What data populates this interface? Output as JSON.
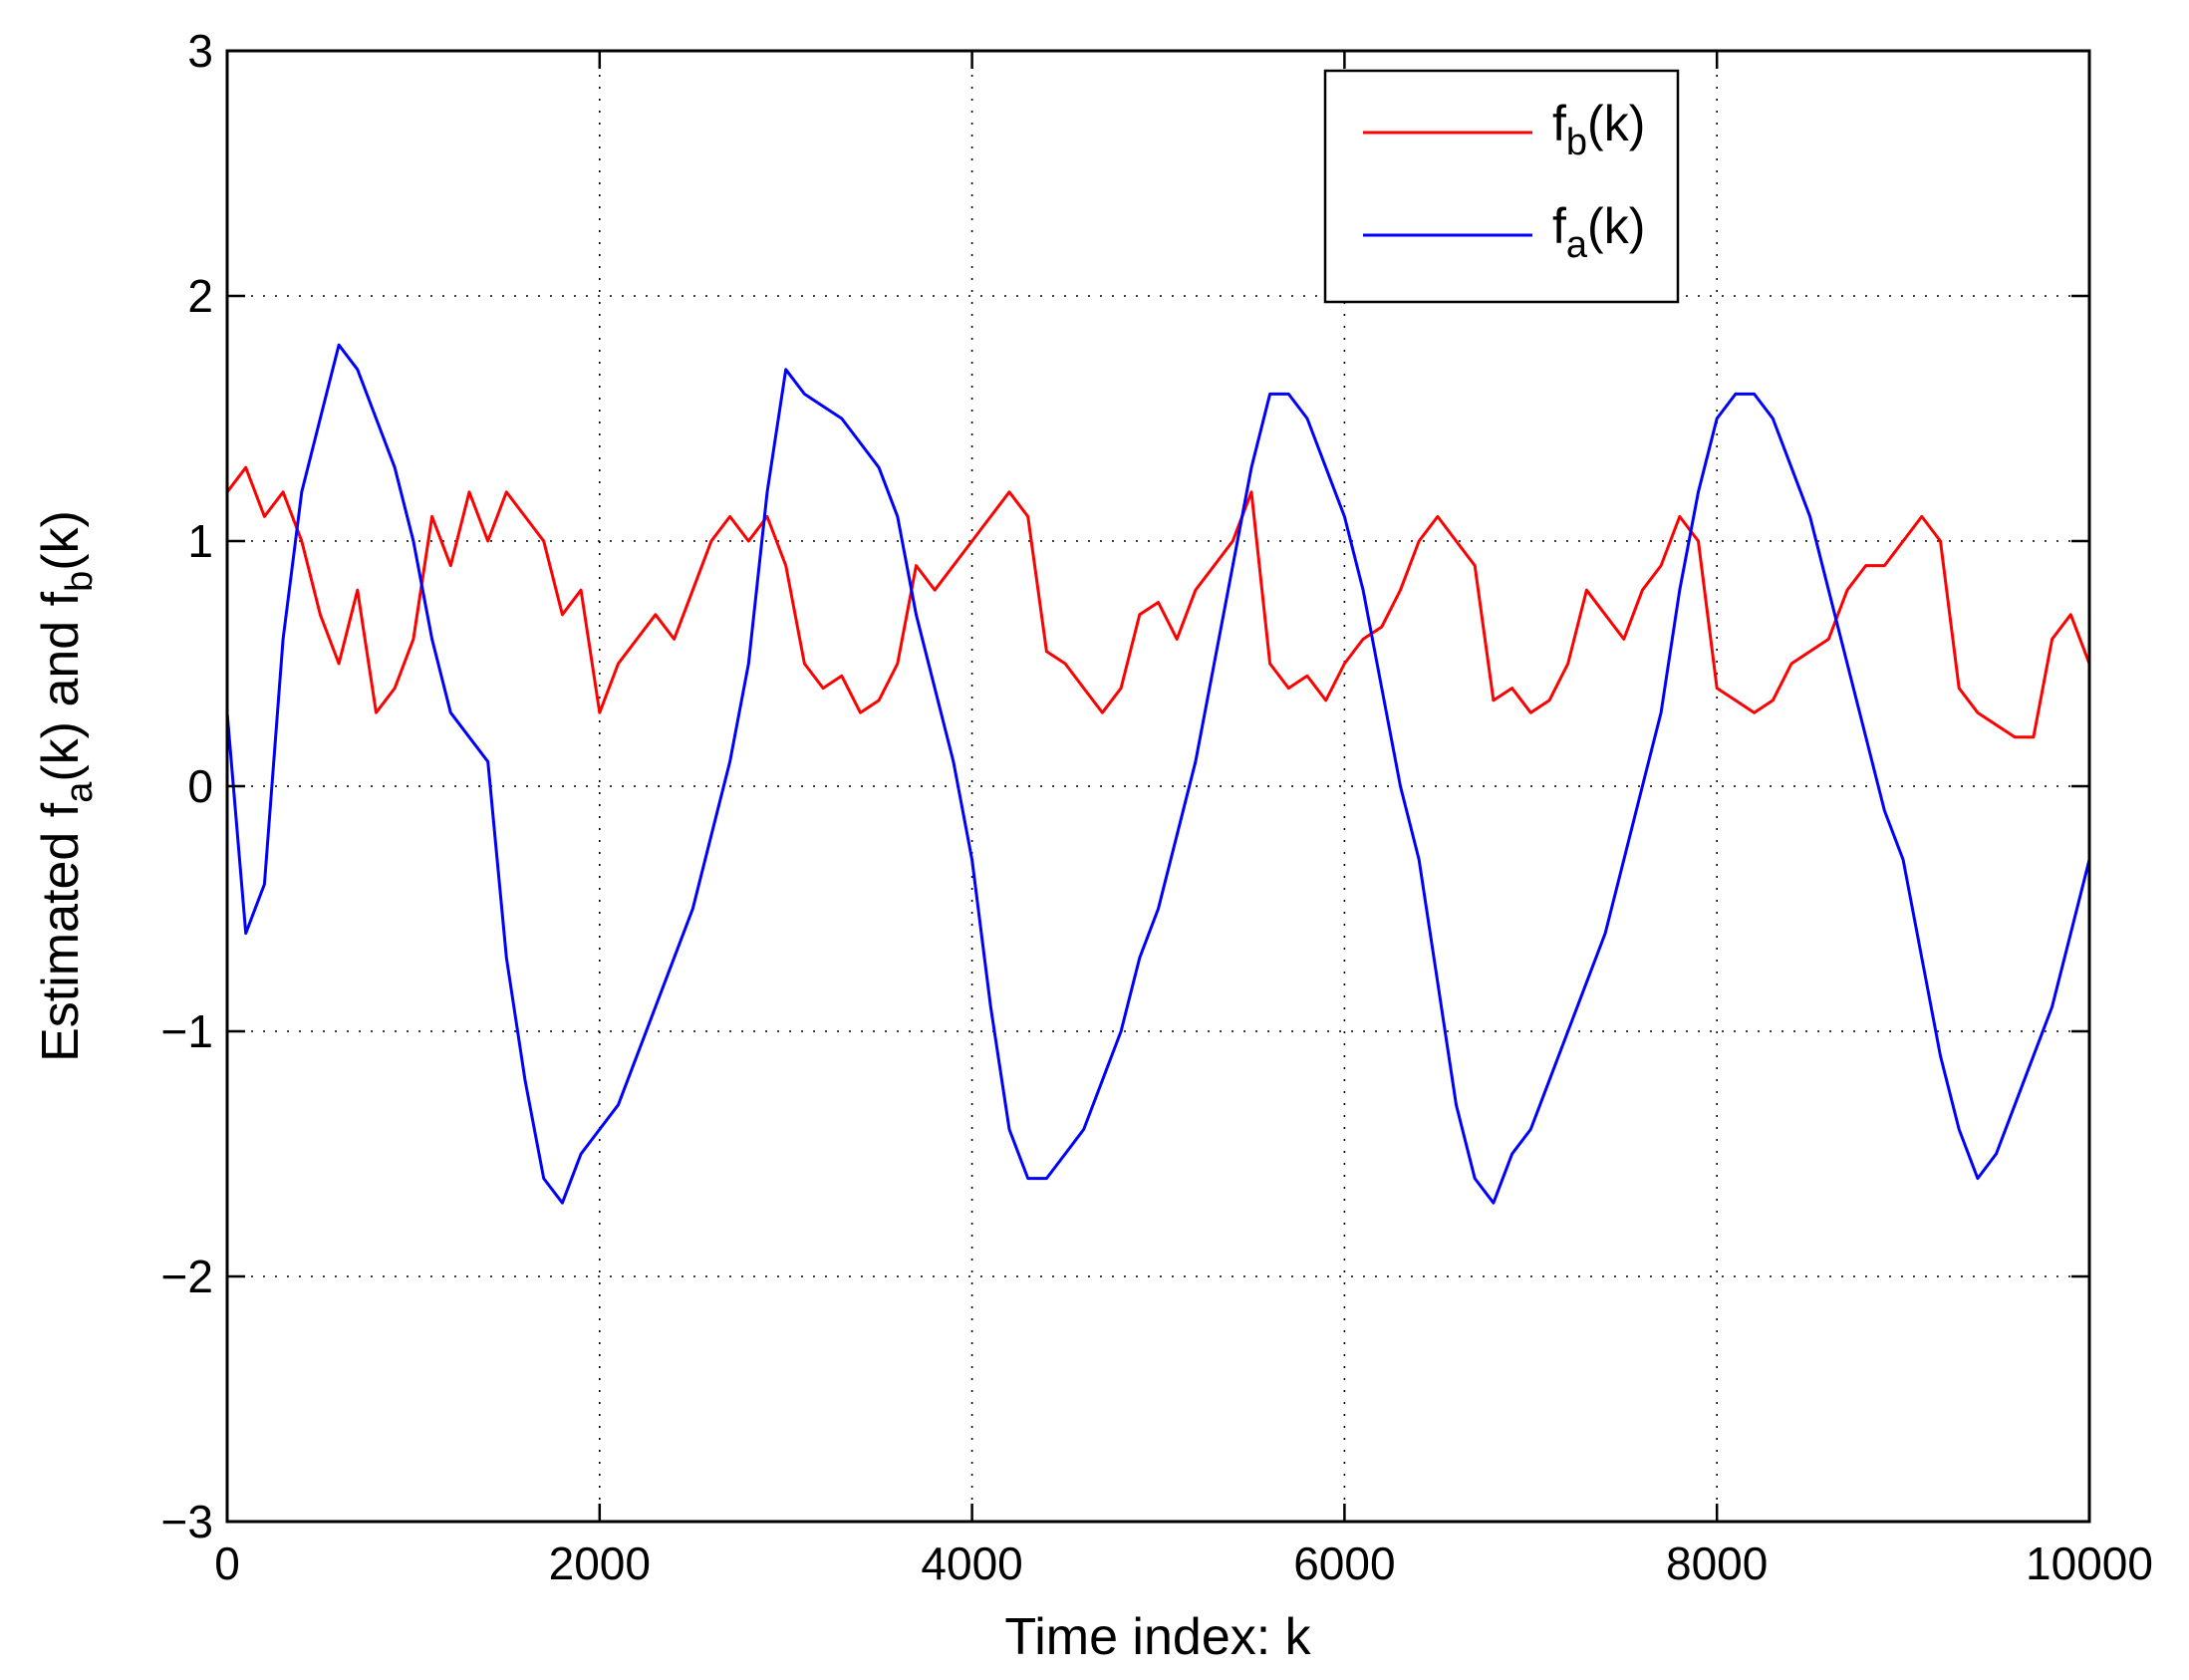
{
  "chart_data": {
    "type": "line",
    "xlabel": "Time index: k",
    "ylabel": {
      "prefix": "Estimated f",
      "sub1": "a",
      "middle": "(k) and f",
      "sub2": "b",
      "suffix": "(k)"
    },
    "xlim": [
      0,
      10000
    ],
    "ylim": [
      -3,
      3
    ],
    "xticks": [
      0,
      2000,
      4000,
      6000,
      8000,
      10000
    ],
    "yticks": [
      -3,
      -2,
      -1,
      0,
      1,
      2,
      3
    ],
    "xtick_labels": [
      "0",
      "2000",
      "4000",
      "6000",
      "8000",
      "10000"
    ],
    "ytick_labels": [
      "−3",
      "−2",
      "−1",
      "0",
      "1",
      "2",
      "3"
    ],
    "grid": true,
    "legend_position": "top-right",
    "series": [
      {
        "name": "f_b(k)",
        "legend_main": "f",
        "legend_sub": "b",
        "legend_suffix": "(k)",
        "color": "#ff0000",
        "x": [
          0,
          100,
          200,
          300,
          400,
          500,
          600,
          700,
          800,
          900,
          1000,
          1100,
          1200,
          1300,
          1400,
          1500,
          1600,
          1700,
          1800,
          1900,
          2000,
          2100,
          2200,
          2300,
          2400,
          2500,
          2600,
          2700,
          2800,
          2900,
          3000,
          3100,
          3200,
          3300,
          3400,
          3500,
          3600,
          3700,
          3800,
          3900,
          4000,
          4100,
          4200,
          4300,
          4400,
          4500,
          4600,
          4700,
          4800,
          4900,
          5000,
          5100,
          5200,
          5300,
          5400,
          5500,
          5600,
          5700,
          5800,
          5900,
          6000,
          6100,
          6200,
          6300,
          6400,
          6500,
          6600,
          6700,
          6800,
          6900,
          7000,
          7100,
          7200,
          7300,
          7400,
          7500,
          7600,
          7700,
          7800,
          7900,
          8000,
          8100,
          8200,
          8300,
          8400,
          8500,
          8600,
          8700,
          8800,
          8900,
          9000,
          9100,
          9200,
          9300,
          9400,
          9500,
          9600,
          9700,
          9800,
          9900,
          10000
        ],
        "values": [
          1.2,
          1.3,
          1.1,
          1.2,
          1.0,
          0.7,
          0.5,
          0.8,
          0.3,
          0.4,
          0.6,
          1.1,
          0.9,
          1.2,
          1.0,
          1.2,
          1.1,
          1.0,
          0.7,
          0.8,
          0.3,
          0.5,
          0.6,
          0.7,
          0.6,
          0.8,
          1.0,
          1.1,
          1.0,
          1.1,
          0.9,
          0.5,
          0.4,
          0.45,
          0.3,
          0.35,
          0.5,
          0.9,
          0.8,
          0.9,
          1.0,
          1.1,
          1.2,
          1.1,
          0.55,
          0.5,
          0.4,
          0.3,
          0.4,
          0.7,
          0.75,
          0.6,
          0.8,
          0.9,
          1.0,
          1.2,
          0.5,
          0.4,
          0.45,
          0.35,
          0.5,
          0.6,
          0.65,
          0.8,
          1.0,
          1.1,
          1.0,
          0.9,
          0.35,
          0.4,
          0.3,
          0.35,
          0.5,
          0.8,
          0.7,
          0.6,
          0.8,
          0.9,
          1.1,
          1.0,
          0.4,
          0.35,
          0.3,
          0.35,
          0.5,
          0.55,
          0.6,
          0.8,
          0.9,
          0.9,
          1.0,
          1.1,
          1.0,
          0.4,
          0.3,
          0.25,
          0.2,
          0.2,
          0.6,
          0.7,
          0.5
        ]
      },
      {
        "name": "f_a(k)",
        "legend_main": "f",
        "legend_sub": "a",
        "legend_suffix": "(k)",
        "color": "#0000ff",
        "x": [
          0,
          100,
          200,
          300,
          400,
          500,
          600,
          700,
          800,
          900,
          1000,
          1100,
          1200,
          1300,
          1400,
          1500,
          1600,
          1700,
          1800,
          1900,
          2000,
          2100,
          2200,
          2300,
          2400,
          2500,
          2600,
          2700,
          2800,
          2900,
          3000,
          3100,
          3200,
          3300,
          3400,
          3500,
          3600,
          3700,
          3800,
          3900,
          4000,
          4100,
          4200,
          4300,
          4400,
          4500,
          4600,
          4700,
          4800,
          4900,
          5000,
          5100,
          5200,
          5300,
          5400,
          5500,
          5600,
          5700,
          5800,
          5900,
          6000,
          6100,
          6200,
          6300,
          6400,
          6500,
          6600,
          6700,
          6800,
          6900,
          7000,
          7100,
          7200,
          7300,
          7400,
          7500,
          7600,
          7700,
          7800,
          7900,
          8000,
          8100,
          8200,
          8300,
          8400,
          8500,
          8600,
          8700,
          8800,
          8900,
          9000,
          9100,
          9200,
          9300,
          9400,
          9500,
          9600,
          9700,
          9800,
          9900,
          10000
        ],
        "values": [
          0.3,
          -0.6,
          -0.4,
          0.6,
          1.2,
          1.5,
          1.8,
          1.7,
          1.5,
          1.3,
          1.0,
          0.6,
          0.3,
          0.2,
          0.1,
          -0.7,
          -1.2,
          -1.6,
          -1.7,
          -1.5,
          -1.4,
          -1.3,
          -1.1,
          -0.9,
          -0.7,
          -0.5,
          -0.2,
          0.1,
          0.5,
          1.2,
          1.7,
          1.6,
          1.55,
          1.5,
          1.4,
          1.3,
          1.1,
          0.7,
          0.4,
          0.1,
          -0.3,
          -0.9,
          -1.4,
          -1.6,
          -1.6,
          -1.5,
          -1.4,
          -1.2,
          -1.0,
          -0.7,
          -0.5,
          -0.2,
          0.1,
          0.5,
          0.9,
          1.3,
          1.6,
          1.6,
          1.5,
          1.3,
          1.1,
          0.8,
          0.4,
          0.0,
          -0.3,
          -0.8,
          -1.3,
          -1.6,
          -1.7,
          -1.5,
          -1.4,
          -1.2,
          -1.0,
          -0.8,
          -0.6,
          -0.3,
          0.0,
          0.3,
          0.8,
          1.2,
          1.5,
          1.6,
          1.6,
          1.5,
          1.3,
          1.1,
          0.8,
          0.5,
          0.2,
          -0.1,
          -0.3,
          -0.7,
          -1.1,
          -1.4,
          -1.6,
          -1.5,
          -1.3,
          -1.1,
          -0.9,
          -0.6,
          -0.3
        ]
      }
    ]
  }
}
